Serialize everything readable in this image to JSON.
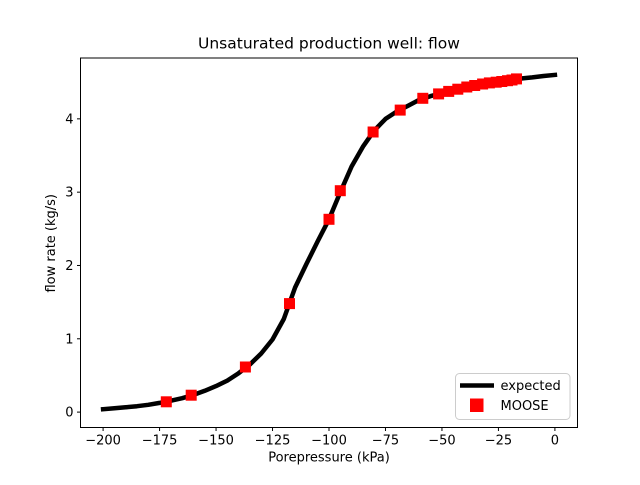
{
  "title": "Unsaturated production well: flow",
  "xlabel": "Porepressure (kPa)",
  "ylabel": "flow rate (kg/s)",
  "colors": {
    "expected_line": "#000000",
    "moose_marker": "#ff0000",
    "legend_border": "#cccccc",
    "background": "#ffffff",
    "axis": "#000000"
  },
  "chart_data": {
    "type": "line",
    "title": "Unsaturated production well: flow",
    "xlabel": "Porepressure (kPa)",
    "ylabel": "flow rate (kg/s)",
    "xlim": [
      -210,
      10
    ],
    "ylim": [
      -0.21,
      4.83
    ],
    "grid": false,
    "xticks": [
      -200,
      -175,
      -150,
      -125,
      -100,
      -75,
      -50,
      -25,
      0
    ],
    "xtick_labels": [
      "−200",
      "−175",
      "−150",
      "−125",
      "−100",
      "−75",
      "−50",
      "−25",
      "0"
    ],
    "yticks": [
      0,
      1,
      2,
      3,
      4
    ],
    "ytick_labels": [
      "0",
      "1",
      "2",
      "3",
      "4"
    ],
    "series": [
      {
        "name": "expected",
        "type": "line",
        "color": "#000000",
        "linewidth": 4.5,
        "x": [
          -200,
          -195,
          -190,
          -185,
          -180,
          -175,
          -170,
          -165,
          -160,
          -155,
          -150,
          -145,
          -140,
          -135,
          -130,
          -125,
          -120,
          -115,
          -110,
          -105,
          -100,
          -95,
          -90,
          -85,
          -80,
          -75,
          -70,
          -65,
          -60,
          -55,
          -50,
          -45,
          -40,
          -35,
          -30,
          -25,
          -20,
          -15,
          -10,
          -5,
          0
        ],
        "y": [
          0.04,
          0.052,
          0.065,
          0.08,
          0.1,
          0.125,
          0.155,
          0.19,
          0.235,
          0.29,
          0.355,
          0.43,
          0.53,
          0.65,
          0.8,
          0.99,
          1.27,
          1.7,
          2.02,
          2.33,
          2.63,
          3.0,
          3.35,
          3.62,
          3.84,
          4.0,
          4.1,
          4.18,
          4.26,
          4.31,
          4.35,
          4.39,
          4.43,
          4.46,
          4.485,
          4.51,
          4.525,
          4.55,
          4.565,
          4.585,
          4.6
        ]
      },
      {
        "name": "MOOSE",
        "type": "scatter",
        "marker": "square",
        "color": "#ff0000",
        "markersize": 11,
        "x": [
          -172,
          -161,
          -137,
          -117.5,
          -100,
          -95,
          -80.5,
          -68.5,
          -58.5,
          -51.5,
          -47,
          -43,
          -39,
          -35.5,
          -32,
          -29,
          -26,
          -23.5,
          -21,
          -19,
          -17
        ],
        "y": [
          0.14,
          0.23,
          0.615,
          1.48,
          2.63,
          3.02,
          3.82,
          4.12,
          4.28,
          4.34,
          4.375,
          4.405,
          4.435,
          4.455,
          4.475,
          4.49,
          4.5,
          4.51,
          4.52,
          4.53,
          4.545
        ]
      }
    ],
    "legend": {
      "position": "lower right",
      "entries": [
        {
          "label": "expected",
          "type": "line",
          "color": "#000000"
        },
        {
          "label": "MOOSE",
          "type": "square",
          "color": "#ff0000"
        }
      ]
    }
  }
}
